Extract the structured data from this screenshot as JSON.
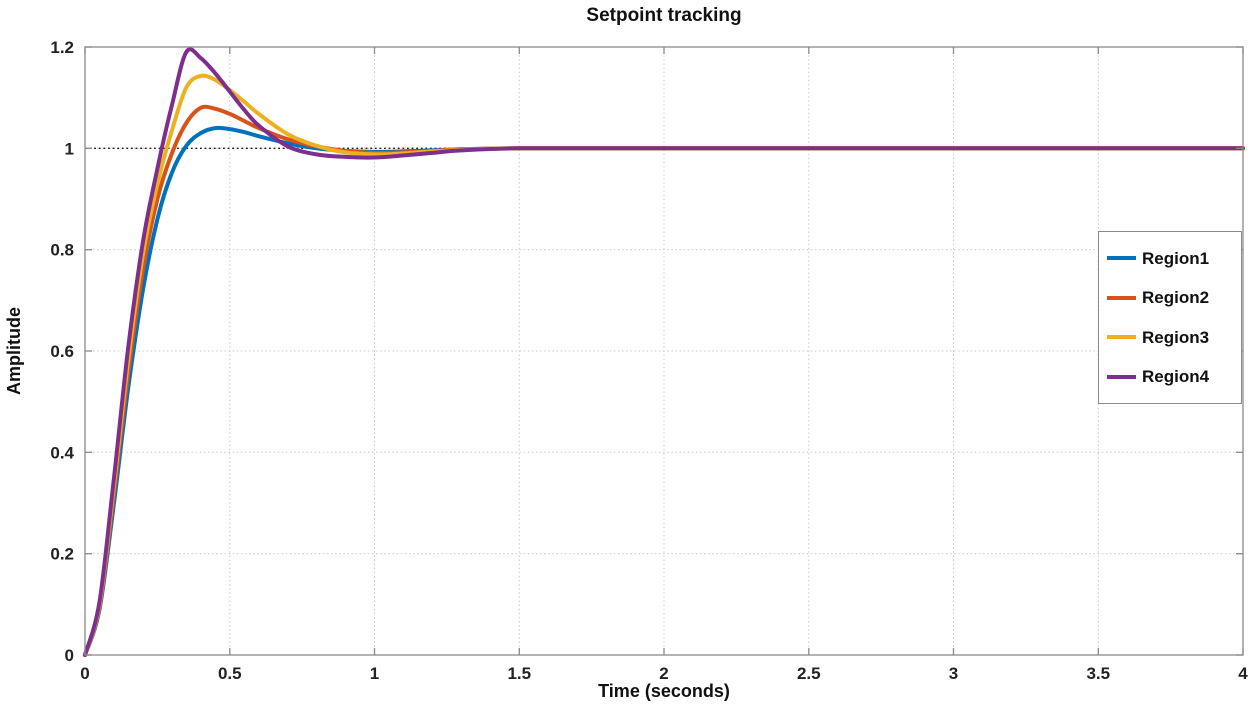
{
  "figure": {
    "background_color": "#ffffff",
    "axes_box_color": "#8a8a8a",
    "grid_color": "#c9c9c9"
  },
  "chart_data": {
    "type": "line",
    "title": "Setpoint tracking",
    "xlabel": "Time (seconds)",
    "ylabel": "Amplitude",
    "xlim": [
      0,
      4
    ],
    "ylim": [
      0,
      1.2
    ],
    "x_ticks": [
      0,
      0.5,
      1,
      1.5,
      2,
      2.5,
      3,
      3.5,
      4
    ],
    "x_tick_labels": [
      "0",
      "0.5",
      "1",
      "1.5",
      "2",
      "2.5",
      "3",
      "3.5",
      "4"
    ],
    "y_ticks": [
      0,
      0.2,
      0.4,
      0.6,
      0.8,
      1,
      1.2
    ],
    "y_tick_labels": [
      "0",
      "0.2",
      "0.4",
      "0.6",
      "0.8",
      "1",
      "1.2"
    ],
    "grid": true,
    "reference_line": {
      "y": 1,
      "style": "dotted",
      "color": "#1a1a1a",
      "meaning": "setpoint"
    },
    "legend": {
      "position": "right-middle",
      "entries": [
        "Region1",
        "Region2",
        "Region3",
        "Region4"
      ]
    },
    "steady_state_value": 1,
    "x": [
      0,
      0.05,
      0.1,
      0.15,
      0.2,
      0.25,
      0.3,
      0.35,
      0.4,
      0.45,
      0.5,
      0.55,
      0.6,
      0.7,
      0.8,
      0.9,
      1,
      1.1,
      1.2,
      1.3,
      1.5,
      2,
      2.5,
      3,
      3.5,
      4
    ],
    "series": [
      {
        "name": "Region1",
        "color": "#0072BD",
        "peak_amplitude": 1.04,
        "peak_time": 0.45,
        "values": [
          0,
          0.09,
          0.3,
          0.53,
          0.72,
          0.86,
          0.952,
          1.005,
          1.03,
          1.04,
          1.038,
          1.032,
          1.024,
          1.01,
          1,
          0.995,
          0.993,
          0.994,
          0.996,
          0.998,
          1,
          1,
          1,
          1,
          1,
          1
        ]
      },
      {
        "name": "Region2",
        "color": "#D95319",
        "peak_amplitude": 1.08,
        "peak_time": 0.4,
        "values": [
          0,
          0.095,
          0.32,
          0.56,
          0.76,
          0.9,
          0.99,
          1.05,
          1.08,
          1.078,
          1.068,
          1.054,
          1.04,
          1.018,
          1.004,
          0.995,
          0.991,
          0.992,
          0.995,
          0.998,
          1,
          1,
          1,
          1,
          1,
          1
        ]
      },
      {
        "name": "Region3",
        "color": "#EDB120",
        "peak_amplitude": 1.145,
        "peak_time": 0.38,
        "values": [
          0,
          0.1,
          0.335,
          0.585,
          0.79,
          0.93,
          1.035,
          1.12,
          1.143,
          1.135,
          1.115,
          1.092,
          1.068,
          1.028,
          1.005,
          0.992,
          0.988,
          0.99,
          0.994,
          0.997,
          1,
          1,
          1,
          1,
          1,
          1
        ]
      },
      {
        "name": "Region4",
        "color": "#7E2F8E",
        "peak_amplitude": 1.19,
        "peak_time": 0.35,
        "values": [
          0,
          0.105,
          0.35,
          0.61,
          0.815,
          0.96,
          1.085,
          1.19,
          1.178,
          1.148,
          1.112,
          1.076,
          1.045,
          1.004,
          0.988,
          0.983,
          0.982,
          0.986,
          0.991,
          0.996,
          1,
          1,
          1,
          1,
          1,
          1
        ]
      }
    ]
  }
}
